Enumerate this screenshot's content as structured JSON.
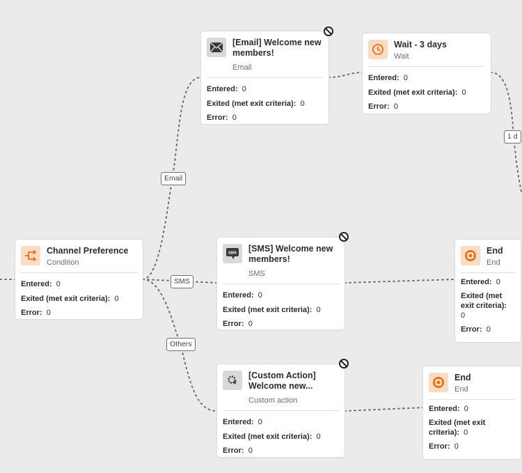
{
  "colors": {
    "canvas": "#ebebeb",
    "accent": "#e8711a",
    "icon_gray_bg": "#d9d9d9",
    "icon_orange_bg": "#fbdcc2"
  },
  "stat_labels": {
    "entered": "Entered:",
    "exited": "Exited (met exit criteria):",
    "error": "Error:"
  },
  "nodes": {
    "email": {
      "title": "[Email] Welcome new members!",
      "subtitle": "Email",
      "icon": "envelope-icon",
      "entered": "0",
      "exited": "0",
      "error": "0"
    },
    "wait": {
      "title": "Wait - 3 days",
      "subtitle": "Wait",
      "icon": "clock-icon",
      "entered": "0",
      "exited": "0",
      "error": "0"
    },
    "condition": {
      "title": "Channel Preference",
      "subtitle": "Condition",
      "icon": "condition-split-icon",
      "entered": "0",
      "exited": "0",
      "error": "0"
    },
    "sms": {
      "title": "[SMS] Welcome new members!",
      "subtitle": "SMS",
      "icon": "sms-icon",
      "entered": "0",
      "exited": "0",
      "error": "0"
    },
    "end1": {
      "title": "End",
      "subtitle": "End",
      "icon": "stop-icon",
      "entered": "0",
      "exited": "0",
      "error": "0"
    },
    "custom": {
      "title": "[Custom Action] Welcome new...",
      "subtitle": "Custom action",
      "icon": "custom-action-icon",
      "entered": "0",
      "exited": "0",
      "error": "0"
    },
    "end2": {
      "title": "End",
      "subtitle": "End",
      "icon": "stop-icon",
      "entered": "0",
      "exited": "0",
      "error": "0"
    }
  },
  "path_labels": {
    "email": "Email",
    "sms": "SMS",
    "others": "Others",
    "wait_duration": "1 d"
  }
}
